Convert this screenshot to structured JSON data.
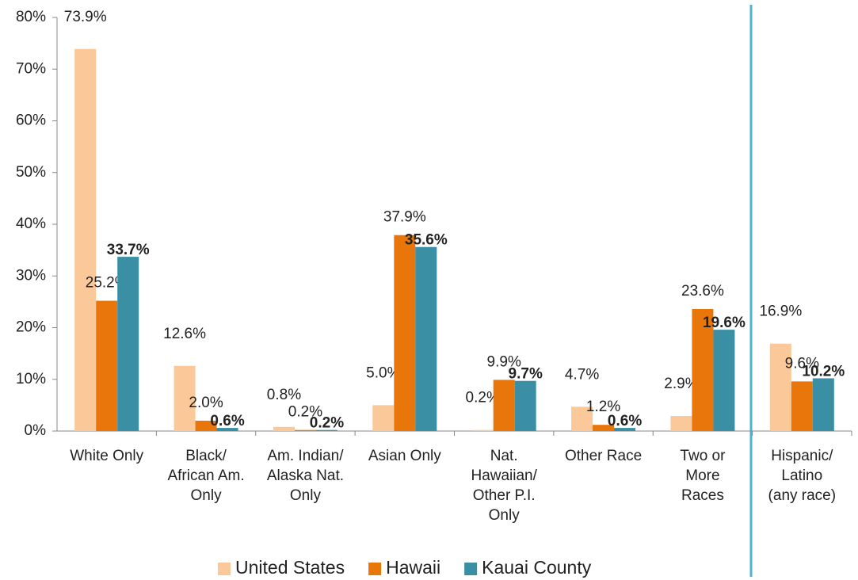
{
  "chart_data": {
    "type": "bar",
    "categories": [
      "White Only",
      "Black/\nAfrican Am.\nOnly",
      "Am. Indian/\nAlaska Nat.\nOnly",
      "Asian Only",
      "Nat.\nHawaiian/\nOther P.I.\nOnly",
      "Other Race",
      "Two or\nMore\nRaces",
      "Hispanic/\nLatino\n(any race)"
    ],
    "series": [
      {
        "name": "United States",
        "color": "#fbc89a",
        "values": [
          73.9,
          12.6,
          0.8,
          5.0,
          0.2,
          4.7,
          2.9,
          16.9
        ],
        "value_labels": [
          "73.9%",
          "12.6%",
          "0.8%",
          "5.0%",
          "0.2%",
          "4.7%",
          "2.9%",
          "16.9%"
        ]
      },
      {
        "name": "Hawaii",
        "color": "#e8760a",
        "values": [
          25.2,
          2.0,
          0.2,
          37.9,
          9.9,
          1.2,
          23.6,
          9.6
        ],
        "value_labels": [
          "25.2%",
          "2.0%",
          "0.2%",
          "37.9%",
          "9.9%",
          "1.2%",
          "23.6%",
          "9.6%"
        ]
      },
      {
        "name": "Kauai County",
        "color": "#3a8fa5",
        "values": [
          33.7,
          0.6,
          0.2,
          35.6,
          9.7,
          0.6,
          19.6,
          10.2
        ],
        "value_labels": [
          "33.7%",
          "0.6%",
          "0.2%",
          "35.6%",
          "9.7%",
          "0.6%",
          "19.6%",
          "10.2%"
        ]
      }
    ],
    "ylim": [
      0,
      80
    ],
    "yticks": [
      {
        "value": 0,
        "label": "0%"
      },
      {
        "value": 10,
        "label": "10%"
      },
      {
        "value": 20,
        "label": "20%"
      },
      {
        "value": 30,
        "label": "30%"
      },
      {
        "value": 40,
        "label": "40%"
      },
      {
        "value": 50,
        "label": "50%"
      },
      {
        "value": 60,
        "label": "60%"
      },
      {
        "value": 70,
        "label": "70%"
      },
      {
        "value": 80,
        "label": "80%"
      }
    ],
    "legend": "bottom"
  }
}
